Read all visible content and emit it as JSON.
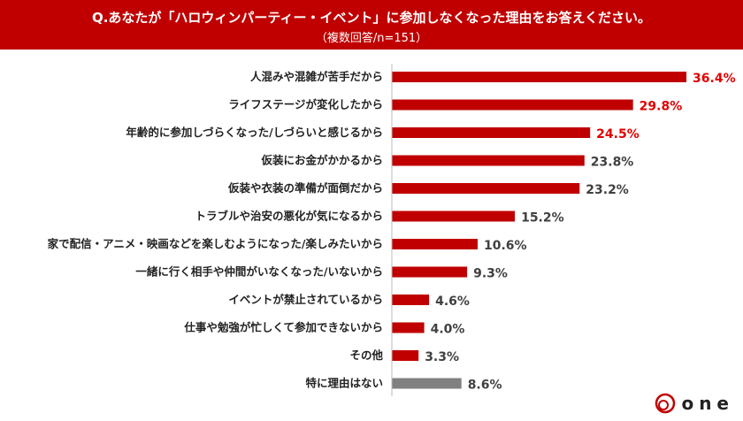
{
  "header": {
    "title": "Q.あなたが「ハロウィンパーティー・イベント」に参加しなくなった理由をお答えください。",
    "subtitle": "（複数回答/n=151）"
  },
  "chart_data": {
    "type": "bar",
    "orientation": "horizontal",
    "categories": [
      "人混みや混雑が苦手だから",
      "ライフステージが変化したから",
      "年齢的に参加しづらくなった/しづらいと感じるから",
      "仮装にお金がかかるから",
      "仮装や衣装の準備が面倒だから",
      "トラブルや治安の悪化が気になるから",
      "家で配信・アニメ・映画などを楽しむようになった/楽しみたいから",
      "一緒に行く相手や仲間がいなくなった/いないから",
      "イベントが禁止されているから",
      "仕事や勉強が忙しくて参加できないから",
      "その他",
      "特に理由はない"
    ],
    "values": [
      36.4,
      29.8,
      24.5,
      23.8,
      23.2,
      15.2,
      10.6,
      9.3,
      4.6,
      4.0,
      3.3,
      8.6
    ],
    "labels": [
      "36.4%",
      "29.8%",
      "24.5%",
      "23.8%",
      "23.2%",
      "15.2%",
      "10.6%",
      "9.3%",
      "4.6%",
      "4.0%",
      "3.3%",
      "8.6%"
    ],
    "colors": {
      "bar": "#c00000",
      "bar_other": "#808080",
      "highlight_label": "#e00000",
      "label": "#404040"
    },
    "highlighted_top": 3
  },
  "logo": {
    "text": "one"
  }
}
